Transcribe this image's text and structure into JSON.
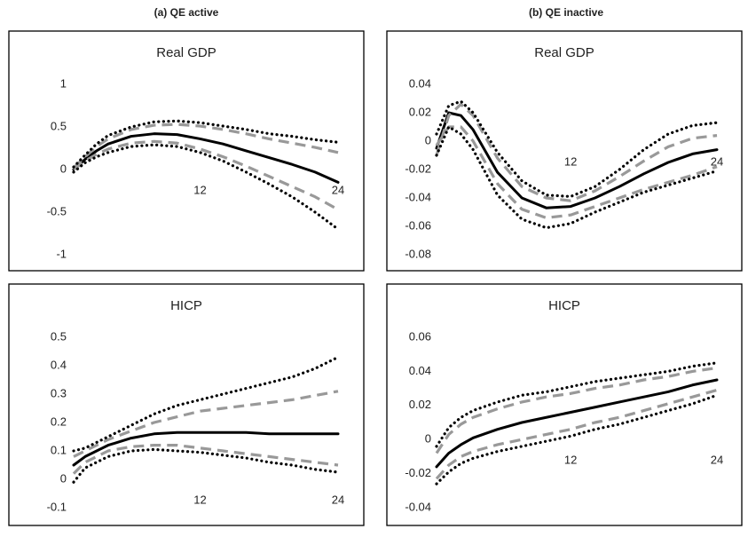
{
  "panel_headers": [
    "(a) QE active",
    "(b) QE inactive"
  ],
  "chart_data": [
    {
      "type": "line",
      "title": "Real GDP",
      "grid": false,
      "x": [
        1,
        2,
        3,
        4,
        6,
        8,
        10,
        12,
        14,
        16,
        18,
        20,
        22,
        24
      ],
      "xlim": [
        1,
        24
      ],
      "xticks": [
        12,
        24
      ],
      "ylim": [
        -1,
        1
      ],
      "yticks": [
        1,
        0.5,
        0,
        -0.5,
        -1
      ],
      "series": [
        {
          "color": "#000000",
          "dash": "solid",
          "values": [
            0,
            0.12,
            0.22,
            0.3,
            0.39,
            0.42,
            0.41,
            0.36,
            0.3,
            0.22,
            0.14,
            0.06,
            -0.03,
            -0.15
          ]
        },
        {
          "color": "#999999",
          "dash": "dashed",
          "values": [
            0.02,
            0.15,
            0.27,
            0.36,
            0.47,
            0.52,
            0.53,
            0.51,
            0.47,
            0.42,
            0.36,
            0.31,
            0.26,
            0.2
          ]
        },
        {
          "color": "#999999",
          "dash": "dashed",
          "values": [
            0,
            0.1,
            0.18,
            0.24,
            0.31,
            0.33,
            0.31,
            0.24,
            0.15,
            0.04,
            -0.08,
            -0.2,
            -0.32,
            -0.47
          ]
        },
        {
          "color": "#000000",
          "dash": "dotted",
          "values": [
            0.03,
            0.17,
            0.3,
            0.4,
            0.5,
            0.56,
            0.57,
            0.55,
            0.51,
            0.47,
            0.42,
            0.39,
            0.35,
            0.32
          ]
        },
        {
          "color": "#000000",
          "dash": "dotted",
          "values": [
            -0.03,
            0.08,
            0.15,
            0.2,
            0.27,
            0.29,
            0.27,
            0.2,
            0.1,
            -0.03,
            -0.17,
            -0.32,
            -0.5,
            -0.7
          ]
        }
      ]
    },
    {
      "type": "line",
      "title": "Real GDP",
      "grid": false,
      "x": [
        1,
        2,
        3,
        4,
        6,
        8,
        10,
        12,
        14,
        16,
        18,
        20,
        22,
        24
      ],
      "xlim": [
        1,
        24
      ],
      "xticks": [
        12,
        24
      ],
      "ylim": [
        -0.08,
        0.04
      ],
      "yticks": [
        0.04,
        0.02,
        0,
        -0.02,
        -0.04,
        -0.06,
        -0.08
      ],
      "series": [
        {
          "color": "#000000",
          "dash": "solid",
          "values": [
            -0.005,
            0.02,
            0.018,
            0.008,
            -0.022,
            -0.04,
            -0.047,
            -0.046,
            -0.04,
            -0.032,
            -0.023,
            -0.015,
            -0.009,
            -0.006
          ]
        },
        {
          "color": "#999999",
          "dash": "dashed",
          "values": [
            -0.01,
            0.018,
            0.026,
            0.018,
            -0.012,
            -0.032,
            -0.04,
            -0.042,
            -0.035,
            -0.025,
            -0.014,
            -0.004,
            0.002,
            0.004
          ]
        },
        {
          "color": "#999999",
          "dash": "dashed",
          "values": [
            -0.003,
            0.01,
            0.01,
            0,
            -0.03,
            -0.048,
            -0.054,
            -0.052,
            -0.046,
            -0.04,
            -0.034,
            -0.029,
            -0.024,
            -0.018
          ]
        },
        {
          "color": "#000000",
          "dash": "dotted",
          "values": [
            0.005,
            0.025,
            0.028,
            0.02,
            -0.008,
            -0.028,
            -0.038,
            -0.039,
            -0.032,
            -0.02,
            -0.006,
            0.005,
            0.011,
            0.013
          ]
        },
        {
          "color": "#000000",
          "dash": "dotted",
          "values": [
            -0.01,
            0.01,
            0.005,
            -0.006,
            -0.038,
            -0.055,
            -0.061,
            -0.058,
            -0.05,
            -0.043,
            -0.036,
            -0.031,
            -0.026,
            -0.021
          ]
        }
      ]
    },
    {
      "type": "line",
      "title": "HICP",
      "grid": false,
      "x": [
        1,
        2,
        3,
        4,
        6,
        8,
        10,
        12,
        14,
        16,
        18,
        20,
        22,
        24
      ],
      "xlim": [
        1,
        24
      ],
      "xticks": [
        12,
        24
      ],
      "ylim": [
        -0.1,
        0.5
      ],
      "yticks": [
        0.5,
        0.4,
        0.3,
        0.2,
        0.1,
        0,
        -0.1
      ],
      "series": [
        {
          "color": "#000000",
          "dash": "solid",
          "values": [
            0.05,
            0.08,
            0.1,
            0.12,
            0.145,
            0.16,
            0.165,
            0.165,
            0.165,
            0.165,
            0.16,
            0.16,
            0.16,
            0.16
          ]
        },
        {
          "color": "#999999",
          "dash": "dashed",
          "values": [
            0.08,
            0.1,
            0.12,
            0.14,
            0.17,
            0.2,
            0.22,
            0.24,
            0.25,
            0.26,
            0.27,
            0.28,
            0.295,
            0.31
          ]
        },
        {
          "color": "#999999",
          "dash": "dashed",
          "values": [
            0.02,
            0.06,
            0.08,
            0.1,
            0.115,
            0.12,
            0.12,
            0.11,
            0.1,
            0.09,
            0.08,
            0.07,
            0.06,
            0.05
          ]
        },
        {
          "color": "#000000",
          "dash": "dotted",
          "values": [
            0.1,
            0.11,
            0.13,
            0.15,
            0.19,
            0.23,
            0.26,
            0.28,
            0.3,
            0.32,
            0.34,
            0.36,
            0.39,
            0.43
          ]
        },
        {
          "color": "#000000",
          "dash": "dotted",
          "values": [
            -0.01,
            0.04,
            0.06,
            0.08,
            0.1,
            0.105,
            0.1,
            0.095,
            0.085,
            0.075,
            0.06,
            0.05,
            0.035,
            0.025
          ]
        }
      ]
    },
    {
      "type": "line",
      "title": "HICP",
      "grid": false,
      "x": [
        1,
        2,
        3,
        4,
        6,
        8,
        10,
        12,
        14,
        16,
        18,
        20,
        22,
        24
      ],
      "xlim": [
        1,
        24
      ],
      "xticks": [
        12,
        24
      ],
      "ylim": [
        -0.04,
        0.06
      ],
      "yticks": [
        0.06,
        0.04,
        0.02,
        0,
        -0.02,
        -0.04
      ],
      "series": [
        {
          "color": "#000000",
          "dash": "solid",
          "values": [
            -0.016,
            -0.008,
            -0.003,
            0.001,
            0.006,
            0.01,
            0.013,
            0.016,
            0.019,
            0.022,
            0.025,
            0.028,
            0.032,
            0.035
          ]
        },
        {
          "color": "#999999",
          "dash": "dashed",
          "values": [
            -0.008,
            0.003,
            0.009,
            0.013,
            0.018,
            0.022,
            0.025,
            0.027,
            0.03,
            0.032,
            0.035,
            0.037,
            0.04,
            0.042
          ]
        },
        {
          "color": "#999999",
          "dash": "dashed",
          "values": [
            -0.023,
            -0.015,
            -0.01,
            -0.007,
            -0.003,
            0,
            0.003,
            0.006,
            0.01,
            0.013,
            0.017,
            0.021,
            0.025,
            0.029
          ]
        },
        {
          "color": "#000000",
          "dash": "dotted",
          "values": [
            -0.004,
            0.007,
            0.013,
            0.017,
            0.022,
            0.026,
            0.028,
            0.031,
            0.034,
            0.036,
            0.038,
            0.04,
            0.043,
            0.045
          ]
        },
        {
          "color": "#000000",
          "dash": "dotted",
          "values": [
            -0.026,
            -0.019,
            -0.014,
            -0.011,
            -0.007,
            -0.004,
            -0.001,
            0.002,
            0.006,
            0.009,
            0.013,
            0.017,
            0.021,
            0.026
          ]
        }
      ]
    }
  ]
}
